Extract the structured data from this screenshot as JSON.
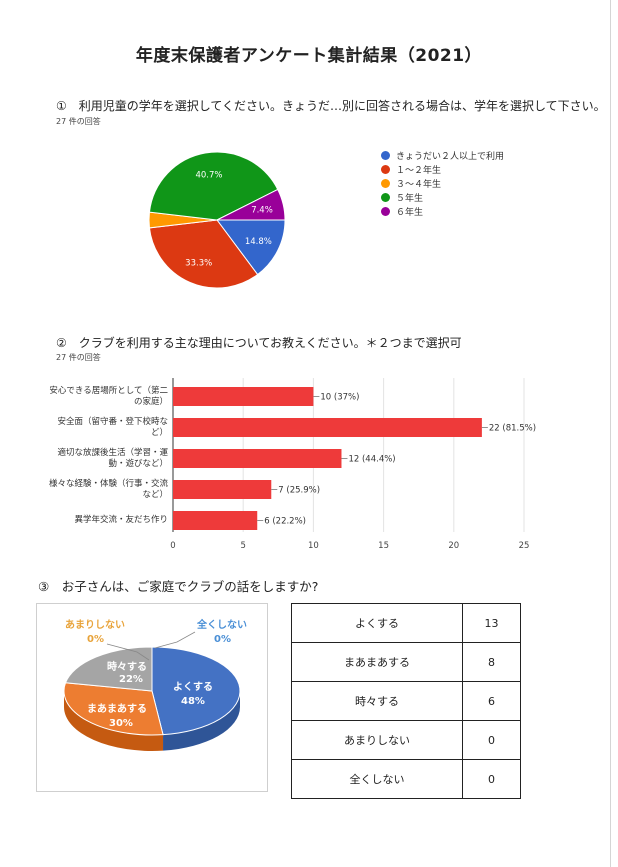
{
  "title": "年度末保護者アンケート集計結果（2021）",
  "q1": {
    "question": "①　利用児童の学年を選択してください。きょうだ…別に回答される場合は、学年を選択して下さい。",
    "responses": "27 件の回答"
  },
  "q2": {
    "question": "②　クラブを利用する主な理由についてお教えください。＊２つまで選択可",
    "responses": "27 件の回答"
  },
  "q3": {
    "question": "③　お子さんは、ご家庭でクラブの話をしますか?",
    "pie_labels": {
      "amari_name": "あまりしない",
      "amari_pct": "0%",
      "zenku_name": "全くしない",
      "zenku_pct": "0%",
      "tokidoki_name": "時々する",
      "tokidoki_pct": "22%",
      "maamaa_name": "まあまあする",
      "maamaa_pct": "30%",
      "yoku_name": "よくする",
      "yoku_pct": "48%"
    },
    "table": [
      {
        "label": "よくする",
        "count": "13"
      },
      {
        "label": "まあまあする",
        "count": "8"
      },
      {
        "label": "時々する",
        "count": "6"
      },
      {
        "label": "あまりしない",
        "count": "0"
      },
      {
        "label": "全くしない",
        "count": "0"
      }
    ]
  },
  "chart_data": [
    {
      "type": "pie",
      "categories": [
        "きょうだい２人以上で利用",
        "１～２年生",
        "３～４年生",
        "５年生",
        "６年生"
      ],
      "values": [
        14.8,
        33.3,
        3.7,
        40.7,
        7.4
      ],
      "data_labels": [
        "14.8%",
        "33.3%",
        "",
        "40.7%",
        "7.4%"
      ],
      "colors": [
        "#3366cc",
        "#dc3912",
        "#ff9900",
        "#109618",
        "#990099"
      ],
      "legend": "right"
    },
    {
      "type": "bar",
      "orientation": "horizontal",
      "categories": [
        [
          "安心できる居場所として（第二",
          "の家庭）"
        ],
        [
          "安全面（留守番・登下校時な",
          "ど）"
        ],
        [
          "適切な放課後生活（学習・運",
          "動・遊びなど）"
        ],
        [
          "様々な経験・体験（行事・交流",
          "など）"
        ],
        [
          "異学年交流・友だち作り"
        ]
      ],
      "values": [
        10,
        22,
        12,
        7,
        6
      ],
      "data_labels": [
        "10 (37%)",
        "22 (81.5%)",
        "12 (44.4%)",
        "7 (25.9%)",
        "6 (22.2%)"
      ],
      "xlim": [
        0,
        25
      ],
      "xticks": [
        0,
        5,
        10,
        15,
        20,
        25
      ],
      "color": "#ee3a3a",
      "grid": true
    },
    {
      "type": "pie",
      "style": "3d",
      "categories": [
        "よくする",
        "まあまあする",
        "時々する",
        "あまりしない",
        "全くしない"
      ],
      "values": [
        48,
        30,
        22,
        0,
        0
      ],
      "colors": [
        "#4472c4",
        "#ed7d31",
        "#a5a5a5",
        "#ffc000",
        "#5b9bd5"
      ]
    }
  ]
}
